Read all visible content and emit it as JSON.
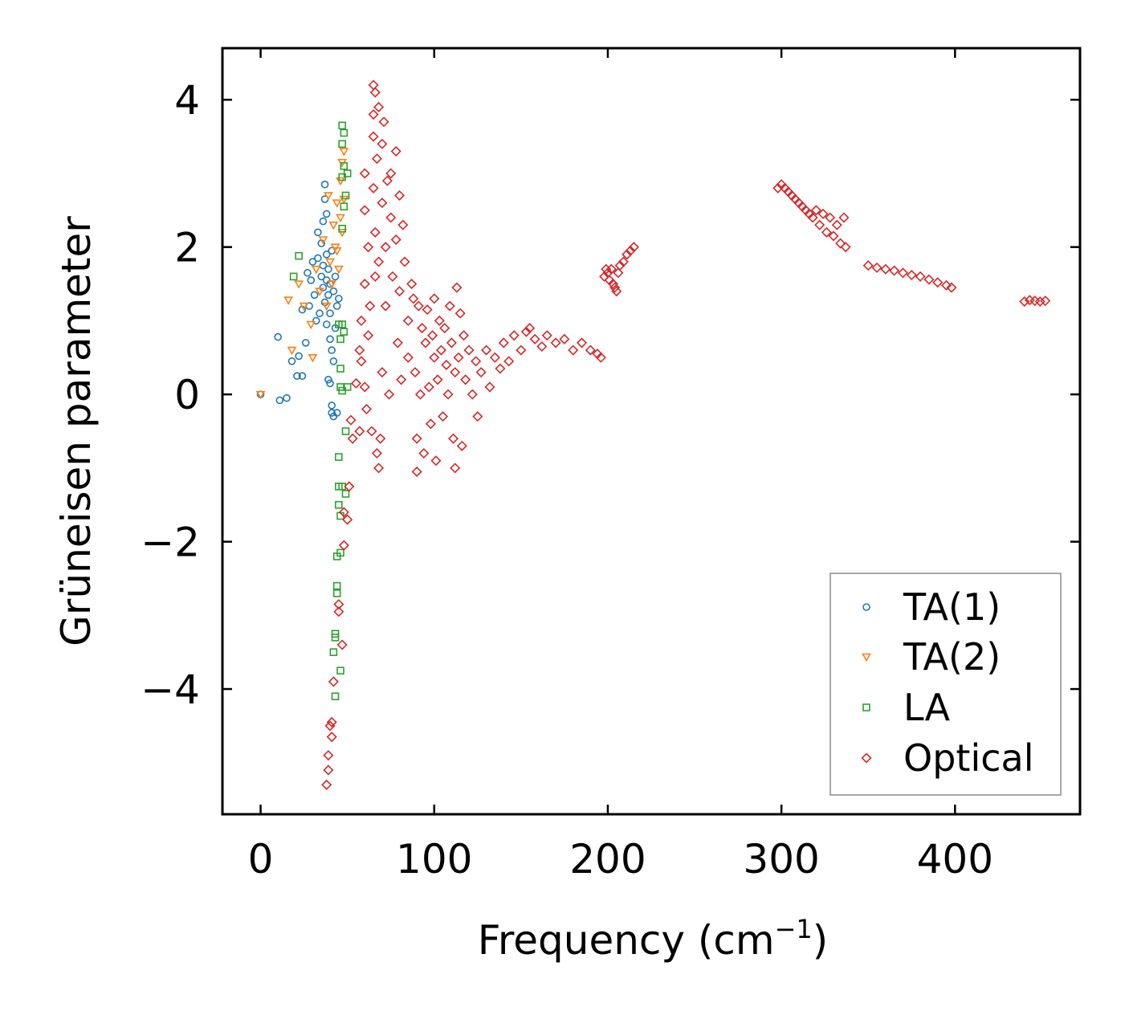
{
  "chart_data": {
    "type": "scatter",
    "title": "",
    "xlabel": "Frequency (cm",
    "xlabel_sup": "−1",
    "xlabel_close": ")",
    "ylabel": "Grüneisen parameter",
    "xlim": [
      -22,
      472
    ],
    "ylim": [
      -5.7,
      4.7
    ],
    "xticks": [
      0,
      100,
      200,
      300,
      400
    ],
    "xtick_labels": [
      "0",
      "100",
      "200",
      "300",
      "400"
    ],
    "yticks": [
      4,
      2,
      0,
      -2,
      -4
    ],
    "ytick_labels": [
      "4",
      "2",
      "0",
      "−2",
      "−4"
    ],
    "grid": false,
    "legend_position": "lower-right",
    "series": [
      {
        "name": "TA(1)",
        "color": "#1f77b4",
        "marker": "circle",
        "points": [
          [
            0,
            0.0
          ],
          [
            10,
            0.78
          ],
          [
            11,
            -0.08
          ],
          [
            15,
            -0.05
          ],
          [
            18,
            0.45
          ],
          [
            21,
            0.25
          ],
          [
            22,
            0.52
          ],
          [
            24,
            0.25
          ],
          [
            24,
            1.15
          ],
          [
            26,
            0.7
          ],
          [
            27,
            1.65
          ],
          [
            28,
            1.2
          ],
          [
            29,
            1.55
          ],
          [
            30,
            1.8
          ],
          [
            31,
            1.35
          ],
          [
            32,
            1.0
          ],
          [
            33,
            2.2
          ],
          [
            33,
            1.85
          ],
          [
            34,
            1.1
          ],
          [
            35,
            1.6
          ],
          [
            35,
            2.05
          ],
          [
            36,
            2.35
          ],
          [
            36,
            1.45
          ],
          [
            36,
            1.75
          ],
          [
            37,
            2.65
          ],
          [
            37,
            2.85
          ],
          [
            37,
            1.25
          ],
          [
            38,
            2.45
          ],
          [
            38,
            1.9
          ],
          [
            38,
            1.55
          ],
          [
            38,
            0.95
          ],
          [
            39,
            1.35
          ],
          [
            39,
            1.7
          ],
          [
            39,
            0.2
          ],
          [
            40,
            1.5
          ],
          [
            40,
            1.1
          ],
          [
            40,
            0.75
          ],
          [
            40,
            0.15
          ],
          [
            41,
            1.95
          ],
          [
            41,
            0.6
          ],
          [
            41,
            -0.15
          ],
          [
            41,
            -0.25
          ],
          [
            42,
            1.4
          ],
          [
            42,
            0.45
          ],
          [
            42,
            -0.3
          ],
          [
            43,
            1.6
          ],
          [
            43,
            0.9
          ],
          [
            44,
            -0.25
          ],
          [
            45,
            1.3
          ],
          [
            44,
            1.2
          ]
        ]
      },
      {
        "name": "TA(2)",
        "color": "#ff7f0e",
        "marker": "triangle-down",
        "points": [
          [
            0,
            0.0
          ],
          [
            16,
            1.28
          ],
          [
            18,
            0.6
          ],
          [
            22,
            1.5
          ],
          [
            25,
            1.2
          ],
          [
            29,
            0.95
          ],
          [
            30,
            0.5
          ],
          [
            32,
            1.7
          ],
          [
            34,
            1.4
          ],
          [
            36,
            2.1
          ],
          [
            38,
            1.2
          ],
          [
            39,
            2.7
          ],
          [
            40,
            1.8
          ],
          [
            41,
            1.5
          ],
          [
            42,
            2.3
          ],
          [
            43,
            2.0
          ],
          [
            44,
            1.95
          ],
          [
            44,
            2.6
          ],
          [
            45,
            1.7
          ],
          [
            46,
            2.4
          ],
          [
            46,
            2.9
          ],
          [
            47,
            2.2
          ],
          [
            47,
            3.15
          ],
          [
            48,
            2.65
          ],
          [
            48,
            3.3
          ]
        ]
      },
      {
        "name": "LA",
        "color": "#2ca02c",
        "marker": "square",
        "points": [
          [
            19,
            1.6
          ],
          [
            22,
            1.88
          ],
          [
            42,
            -3.5
          ],
          [
            43,
            -3.3
          ],
          [
            43,
            -3.25
          ],
          [
            43,
            -4.1
          ],
          [
            44,
            -2.6
          ],
          [
            44,
            -2.7
          ],
          [
            44,
            -2.2
          ],
          [
            45,
            -1.5
          ],
          [
            45,
            -1.25
          ],
          [
            45,
            -0.85
          ],
          [
            45,
            0.95
          ],
          [
            46,
            -3.75
          ],
          [
            46,
            -2.15
          ],
          [
            46,
            -1.65
          ],
          [
            46,
            0.1
          ],
          [
            46,
            0.35
          ],
          [
            46,
            0.75
          ],
          [
            47,
            -1.25
          ],
          [
            47,
            0.05
          ],
          [
            47,
            0.95
          ],
          [
            47,
            2.25
          ],
          [
            47,
            2.95
          ],
          [
            47,
            3.4
          ],
          [
            47,
            3.65
          ],
          [
            48,
            0.85
          ],
          [
            48,
            2.55
          ],
          [
            48,
            3.1
          ],
          [
            48,
            3.55
          ],
          [
            49,
            -1.35
          ],
          [
            49,
            -0.5
          ],
          [
            49,
            2.7
          ],
          [
            50,
            0.1
          ],
          [
            50,
            3.0
          ]
        ]
      },
      {
        "name": "Optical",
        "color": "#d62728",
        "marker": "diamond",
        "points": [
          [
            38,
            -5.3
          ],
          [
            39,
            -4.9
          ],
          [
            39,
            -5.1
          ],
          [
            40,
            -4.5
          ],
          [
            41,
            -4.65
          ],
          [
            41,
            -4.45
          ],
          [
            42,
            -3.9
          ],
          [
            45,
            -2.85
          ],
          [
            45,
            -2.95
          ],
          [
            47,
            -3.4
          ],
          [
            48,
            -1.6
          ],
          [
            48,
            -2.05
          ],
          [
            50,
            -1.7
          ],
          [
            51,
            -1.25
          ],
          [
            52,
            -0.35
          ],
          [
            53,
            -0.6
          ],
          [
            55,
            0.15
          ],
          [
            57,
            -0.5
          ],
          [
            57,
            0.6
          ],
          [
            58,
            0.45
          ],
          [
            58,
            1.0
          ],
          [
            60,
            0.1
          ],
          [
            60,
            1.5
          ],
          [
            60,
            2.5
          ],
          [
            60,
            3.0
          ],
          [
            61,
            -0.2
          ],
          [
            62,
            2.0
          ],
          [
            62,
            0.8
          ],
          [
            63,
            1.2
          ],
          [
            64,
            -0.5
          ],
          [
            65,
            4.2
          ],
          [
            65,
            3.5
          ],
          [
            65,
            3.8
          ],
          [
            65,
            2.8
          ],
          [
            66,
            4.1
          ],
          [
            66,
            1.6
          ],
          [
            66,
            2.2
          ],
          [
            67,
            -0.8
          ],
          [
            67,
            3.2
          ],
          [
            68,
            -1.0
          ],
          [
            68,
            3.9
          ],
          [
            68,
            1.8
          ],
          [
            69,
            -0.6
          ],
          [
            70,
            3.4
          ],
          [
            70,
            2.6
          ],
          [
            70,
            0.3
          ],
          [
            71,
            3.7
          ],
          [
            72,
            2.0
          ],
          [
            72,
            1.2
          ],
          [
            73,
            2.9
          ],
          [
            74,
            0.0
          ],
          [
            75,
            2.4
          ],
          [
            75,
            3.0
          ],
          [
            76,
            1.6
          ],
          [
            78,
            3.3
          ],
          [
            78,
            2.1
          ],
          [
            79,
            0.7
          ],
          [
            80,
            2.7
          ],
          [
            80,
            1.4
          ],
          [
            81,
            0.2
          ],
          [
            82,
            2.3
          ],
          [
            83,
            1.8
          ],
          [
            85,
            1.0
          ],
          [
            85,
            0.5
          ],
          [
            87,
            1.5
          ],
          [
            88,
            1.3
          ],
          [
            89,
            0.3
          ],
          [
            90,
            -1.05
          ],
          [
            90,
            -0.6
          ],
          [
            91,
            1.2
          ],
          [
            92,
            0.0
          ],
          [
            93,
            0.9
          ],
          [
            94,
            -0.8
          ],
          [
            95,
            0.7
          ],
          [
            96,
            1.15
          ],
          [
            97,
            0.1
          ],
          [
            98,
            -0.4
          ],
          [
            99,
            0.8
          ],
          [
            100,
            1.3
          ],
          [
            100,
            0.5
          ],
          [
            101,
            -0.9
          ],
          [
            102,
            0.2
          ],
          [
            103,
            1.0
          ],
          [
            104,
            0.6
          ],
          [
            105,
            -0.3
          ],
          [
            106,
            0.9
          ],
          [
            107,
            0.4
          ],
          [
            108,
            0.0
          ],
          [
            109,
            1.2
          ],
          [
            110,
            0.7
          ],
          [
            111,
            -0.6
          ],
          [
            112,
            -1.0
          ],
          [
            112,
            0.3
          ],
          [
            113,
            1.45
          ],
          [
            114,
            0.5
          ],
          [
            115,
            1.1
          ],
          [
            116,
            -0.7
          ],
          [
            117,
            0.8
          ],
          [
            118,
            0.2
          ],
          [
            120,
            0.6
          ],
          [
            122,
            0.0
          ],
          [
            124,
            0.45
          ],
          [
            125,
            -0.3
          ],
          [
            127,
            0.3
          ],
          [
            130,
            0.6
          ],
          [
            132,
            0.1
          ],
          [
            135,
            0.5
          ],
          [
            138,
            0.35
          ],
          [
            140,
            0.7
          ],
          [
            143,
            0.45
          ],
          [
            146,
            0.8
          ],
          [
            150,
            0.6
          ],
          [
            153,
            0.85
          ],
          [
            155,
            0.9
          ],
          [
            158,
            0.75
          ],
          [
            162,
            0.65
          ],
          [
            165,
            0.8
          ],
          [
            170,
            0.7
          ],
          [
            175,
            0.75
          ],
          [
            180,
            0.6
          ],
          [
            185,
            0.7
          ],
          [
            190,
            0.6
          ],
          [
            194,
            0.55
          ],
          [
            196,
            0.5
          ],
          [
            198,
            1.6
          ],
          [
            199,
            1.7
          ],
          [
            200,
            1.65
          ],
          [
            201,
            1.55
          ],
          [
            202,
            1.7
          ],
          [
            203,
            1.5
          ],
          [
            204,
            1.45
          ],
          [
            205,
            1.4
          ],
          [
            206,
            1.65
          ],
          [
            207,
            1.75
          ],
          [
            209,
            1.8
          ],
          [
            211,
            1.9
          ],
          [
            213,
            1.95
          ],
          [
            215,
            2.0
          ],
          [
            298,
            2.8
          ],
          [
            300,
            2.85
          ],
          [
            302,
            2.8
          ],
          [
            304,
            2.75
          ],
          [
            306,
            2.7
          ],
          [
            308,
            2.65
          ],
          [
            310,
            2.6
          ],
          [
            312,
            2.55
          ],
          [
            314,
            2.5
          ],
          [
            316,
            2.45
          ],
          [
            318,
            2.4
          ],
          [
            320,
            2.5
          ],
          [
            322,
            2.3
          ],
          [
            324,
            2.45
          ],
          [
            326,
            2.2
          ],
          [
            328,
            2.4
          ],
          [
            330,
            2.15
          ],
          [
            332,
            2.3
          ],
          [
            334,
            2.05
          ],
          [
            336,
            2.4
          ],
          [
            337,
            2.0
          ],
          [
            350,
            1.75
          ],
          [
            355,
            1.72
          ],
          [
            360,
            1.7
          ],
          [
            365,
            1.68
          ],
          [
            370,
            1.65
          ],
          [
            375,
            1.62
          ],
          [
            380,
            1.6
          ],
          [
            385,
            1.56
          ],
          [
            390,
            1.52
          ],
          [
            395,
            1.48
          ],
          [
            398,
            1.45
          ],
          [
            440,
            1.26
          ],
          [
            443,
            1.28
          ],
          [
            446,
            1.27
          ],
          [
            449,
            1.26
          ],
          [
            452,
            1.27
          ]
        ]
      }
    ]
  }
}
